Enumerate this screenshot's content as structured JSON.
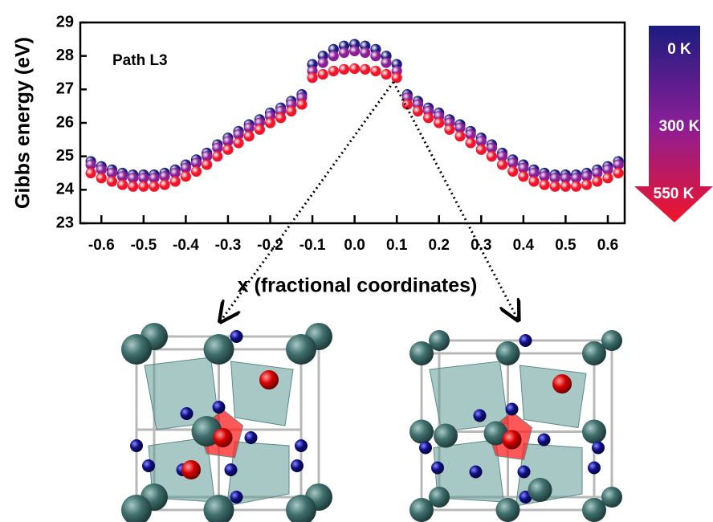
{
  "chart_data": {
    "type": "scatter",
    "annotation": "Path L3",
    "xlabel": "x (fractional coordinates)",
    "ylabel": "Gibbs energy (eV)",
    "x": [
      -0.625,
      -0.6,
      -0.575,
      -0.55,
      -0.525,
      -0.5,
      -0.475,
      -0.45,
      -0.425,
      -0.4,
      -0.375,
      -0.35,
      -0.325,
      -0.3,
      -0.275,
      -0.25,
      -0.225,
      -0.2,
      -0.175,
      -0.15,
      -0.125,
      -0.1,
      -0.075,
      -0.05,
      -0.025,
      0,
      0.025,
      0.05,
      0.075,
      0.1,
      0.125,
      0.15,
      0.175,
      0.2,
      0.225,
      0.25,
      0.275,
      0.3,
      0.325,
      0.35,
      0.375,
      0.4,
      0.425,
      0.45,
      0.475,
      0.5,
      0.525,
      0.55,
      0.575,
      0.6,
      0.625
    ],
    "series": [
      {
        "name": "0 K",
        "color": "#1c1c80",
        "values": [
          24.85,
          24.7,
          24.6,
          24.5,
          24.45,
          24.45,
          24.45,
          24.5,
          24.6,
          24.75,
          24.9,
          25.1,
          25.35,
          25.55,
          25.75,
          25.95,
          26.1,
          26.3,
          26.45,
          26.65,
          26.85,
          27.75,
          28.0,
          28.2,
          28.3,
          28.35,
          28.3,
          28.2,
          28.0,
          27.75,
          26.85,
          26.65,
          26.45,
          26.3,
          26.1,
          25.95,
          25.75,
          25.55,
          25.35,
          25.1,
          24.9,
          24.75,
          24.6,
          24.5,
          24.45,
          24.45,
          24.45,
          24.5,
          24.6,
          24.7,
          24.85
        ]
      },
      {
        "name": "300 K",
        "color": "#8a1e96",
        "values": [
          24.75,
          24.6,
          24.5,
          24.4,
          24.35,
          24.35,
          24.35,
          24.4,
          24.5,
          24.65,
          24.8,
          25.0,
          25.25,
          25.45,
          25.65,
          25.85,
          26.0,
          26.2,
          26.35,
          26.55,
          26.75,
          27.55,
          27.8,
          28.0,
          28.1,
          28.15,
          28.1,
          28.0,
          27.8,
          27.55,
          26.75,
          26.55,
          26.35,
          26.2,
          26.0,
          25.85,
          25.65,
          25.45,
          25.25,
          25.0,
          24.8,
          24.65,
          24.5,
          24.4,
          24.35,
          24.35,
          24.35,
          24.4,
          24.5,
          24.6,
          24.75
        ]
      },
      {
        "name": "550 K",
        "color": "#f0152a",
        "values": [
          24.5,
          24.35,
          24.25,
          24.15,
          24.1,
          24.1,
          24.1,
          24.15,
          24.25,
          24.4,
          24.55,
          24.75,
          25.0,
          25.2,
          25.4,
          25.6,
          25.8,
          26.0,
          26.15,
          26.35,
          26.55,
          27.35,
          27.45,
          27.55,
          27.6,
          27.62,
          27.6,
          27.55,
          27.45,
          27.35,
          26.55,
          26.35,
          26.15,
          26.0,
          25.8,
          25.6,
          25.4,
          25.2,
          25.0,
          24.75,
          24.55,
          24.4,
          24.25,
          24.15,
          24.1,
          24.1,
          24.1,
          24.15,
          24.25,
          24.35,
          24.5
        ]
      }
    ],
    "xlim": [
      -0.65,
      0.64
    ],
    "ylim": [
      23,
      29
    ],
    "xticks": [
      -0.6,
      -0.5,
      -0.4,
      -0.3,
      -0.2,
      -0.1,
      {
        "value": 0,
        "label": "0.0"
      },
      0.1,
      0.2,
      0.3,
      0.4,
      0.5,
      0.6
    ],
    "yticks": [
      23,
      24,
      25,
      26,
      27,
      28,
      29
    ],
    "legend": "right"
  }
}
